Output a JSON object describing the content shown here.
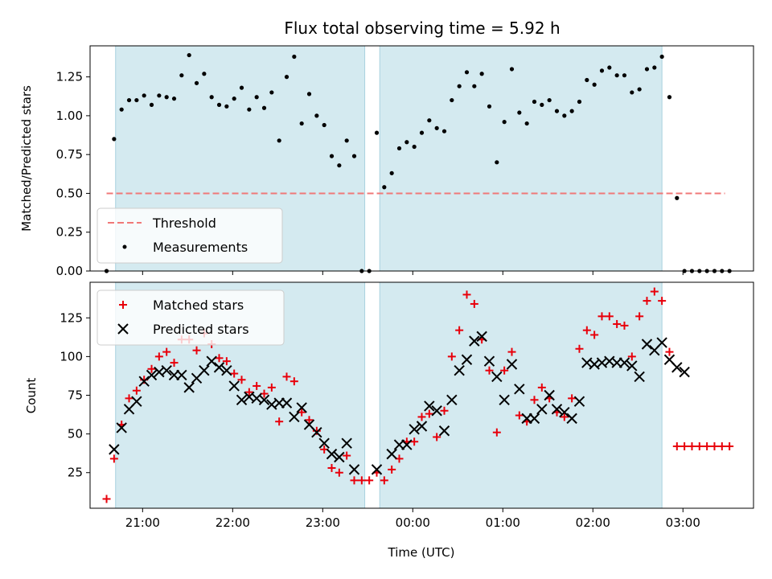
{
  "title": "Flux total observing time = 5.92 h",
  "colors": {
    "shade": "#d4eaf0",
    "shade_edge": "#a9d2df",
    "threshold": "#f07878",
    "measure": "#000000",
    "matched": "#e8000b",
    "predicted": "#000000"
  },
  "chart_data": [
    {
      "type": "scatter",
      "ylabel": "Matched/Predicted stars",
      "ylim": [
        0,
        1.45
      ],
      "yticks": [
        0,
        0.25,
        0.5,
        0.75,
        1.0,
        1.25
      ],
      "ytick_labels": [
        "0.00",
        "0.25",
        "0.50",
        "0.75",
        "1.00",
        "1.25"
      ],
      "xlim": [
        "20:25",
        "03:47"
      ],
      "shaded_intervals": [
        [
          "20:42",
          "23:28"
        ],
        [
          "23:38",
          "02:46"
        ]
      ],
      "legend": {
        "placement": "lower-left",
        "entries": [
          "Threshold",
          "Measurements"
        ]
      },
      "threshold": {
        "name": "Threshold",
        "y": 0.5,
        "x_range": [
          "20:36",
          "03:28"
        ],
        "style": "dashed"
      },
      "series": [
        {
          "name": "Measurements",
          "marker": "dot",
          "points": [
            [
              "20:36",
              0.0
            ],
            [
              "20:41",
              0.85
            ],
            [
              "20:46",
              1.04
            ],
            [
              "20:51",
              1.1
            ],
            [
              "20:56",
              1.1
            ],
            [
              "21:01",
              1.13
            ],
            [
              "21:06",
              1.07
            ],
            [
              "21:11",
              1.13
            ],
            [
              "21:16",
              1.12
            ],
            [
              "21:21",
              1.11
            ],
            [
              "21:26",
              1.26
            ],
            [
              "21:31",
              1.39
            ],
            [
              "21:36",
              1.21
            ],
            [
              "21:41",
              1.27
            ],
            [
              "21:46",
              1.12
            ],
            [
              "21:51",
              1.07
            ],
            [
              "21:56",
              1.06
            ],
            [
              "22:01",
              1.11
            ],
            [
              "22:06",
              1.18
            ],
            [
              "22:11",
              1.04
            ],
            [
              "22:16",
              1.12
            ],
            [
              "22:21",
              1.05
            ],
            [
              "22:26",
              1.15
            ],
            [
              "22:31",
              0.84
            ],
            [
              "22:36",
              1.25
            ],
            [
              "22:41",
              1.38
            ],
            [
              "22:46",
              0.95
            ],
            [
              "22:51",
              1.14
            ],
            [
              "22:56",
              1.0
            ],
            [
              "23:01",
              0.94
            ],
            [
              "23:06",
              0.74
            ],
            [
              "23:11",
              0.68
            ],
            [
              "23:16",
              0.84
            ],
            [
              "23:21",
              0.74
            ],
            [
              "23:26",
              0.0
            ],
            [
              "23:31",
              0.0
            ],
            [
              "23:36",
              0.89
            ],
            [
              "23:41",
              0.54
            ],
            [
              "23:46",
              0.63
            ],
            [
              "23:51",
              0.79
            ],
            [
              "23:56",
              0.83
            ],
            [
              "00:01",
              0.8
            ],
            [
              "00:06",
              0.89
            ],
            [
              "00:11",
              0.97
            ],
            [
              "00:16",
              0.92
            ],
            [
              "00:21",
              0.9
            ],
            [
              "00:26",
              1.1
            ],
            [
              "00:31",
              1.19
            ],
            [
              "00:36",
              1.28
            ],
            [
              "00:41",
              1.19
            ],
            [
              "00:46",
              1.27
            ],
            [
              "00:51",
              1.06
            ],
            [
              "00:56",
              0.7
            ],
            [
              "01:01",
              0.96
            ],
            [
              "01:06",
              1.3
            ],
            [
              "01:11",
              1.02
            ],
            [
              "01:16",
              0.95
            ],
            [
              "01:21",
              1.09
            ],
            [
              "01:26",
              1.07
            ],
            [
              "01:31",
              1.1
            ],
            [
              "01:36",
              1.03
            ],
            [
              "01:41",
              1.0
            ],
            [
              "01:46",
              1.03
            ],
            [
              "01:51",
              1.09
            ],
            [
              "01:56",
              1.23
            ],
            [
              "02:01",
              1.2
            ],
            [
              "02:06",
              1.29
            ],
            [
              "02:11",
              1.31
            ],
            [
              "02:16",
              1.26
            ],
            [
              "02:21",
              1.26
            ],
            [
              "02:26",
              1.15
            ],
            [
              "02:31",
              1.17
            ],
            [
              "02:36",
              1.3
            ],
            [
              "02:41",
              1.31
            ],
            [
              "02:46",
              1.38
            ],
            [
              "02:51",
              1.12
            ],
            [
              "02:56",
              0.47
            ],
            [
              "03:01",
              0.0
            ],
            [
              "03:06",
              0.0
            ],
            [
              "03:11",
              0.0
            ],
            [
              "03:16",
              0.0
            ],
            [
              "03:21",
              0.0
            ],
            [
              "03:26",
              0.0
            ],
            [
              "03:31",
              0.0
            ]
          ]
        }
      ]
    },
    {
      "type": "scatter",
      "xlabel": "Time (UTC)",
      "ylabel": "Count",
      "ylim": [
        2,
        148
      ],
      "yticks": [
        25,
        50,
        75,
        100,
        125
      ],
      "ytick_labels": [
        "25",
        "50",
        "75",
        "100",
        "125"
      ],
      "xlim": [
        "20:25",
        "03:47"
      ],
      "xticks": [
        "21:00",
        "22:00",
        "23:00",
        "00:00",
        "01:00",
        "02:00",
        "03:00"
      ],
      "xtick_labels": [
        "21:00",
        "22:00",
        "23:00",
        "00:00",
        "01:00",
        "02:00",
        "03:00"
      ],
      "shaded_intervals": [
        [
          "20:42",
          "23:28"
        ],
        [
          "23:38",
          "02:46"
        ]
      ],
      "legend": {
        "placement": "upper-left",
        "entries": [
          "Matched stars",
          "Predicted stars"
        ]
      },
      "series": [
        {
          "name": "Matched stars",
          "marker": "plus",
          "points": [
            [
              "20:36",
              8
            ],
            [
              "20:41",
              34
            ],
            [
              "20:46",
              56
            ],
            [
              "20:51",
              73
            ],
            [
              "20:56",
              78
            ],
            [
              "21:01",
              85
            ],
            [
              "21:06",
              92
            ],
            [
              "21:11",
              100
            ],
            [
              "21:16",
              103
            ],
            [
              "21:21",
              96
            ],
            [
              "21:26",
              111
            ],
            [
              "21:31",
              111
            ],
            [
              "21:36",
              104
            ],
            [
              "21:41",
              115
            ],
            [
              "21:46",
              108
            ],
            [
              "21:51",
              99
            ],
            [
              "21:56",
              97
            ],
            [
              "22:01",
              89
            ],
            [
              "22:06",
              85
            ],
            [
              "22:11",
              77
            ],
            [
              "22:16",
              81
            ],
            [
              "22:21",
              76
            ],
            [
              "22:26",
              80
            ],
            [
              "22:31",
              58
            ],
            [
              "22:36",
              87
            ],
            [
              "22:41",
              84
            ],
            [
              "22:46",
              64
            ],
            [
              "22:51",
              59
            ],
            [
              "22:56",
              52
            ],
            [
              "23:01",
              40
            ],
            [
              "23:06",
              28
            ],
            [
              "23:11",
              25
            ],
            [
              "23:16",
              36
            ],
            [
              "23:21",
              20
            ],
            [
              "23:26",
              20
            ],
            [
              "23:31",
              20
            ],
            [
              "23:36",
              25
            ],
            [
              "23:41",
              20
            ],
            [
              "23:46",
              27
            ],
            [
              "23:51",
              34
            ],
            [
              "23:56",
              45
            ],
            [
              "00:01",
              45
            ],
            [
              "00:06",
              61
            ],
            [
              "00:11",
              63
            ],
            [
              "00:16",
              48
            ],
            [
              "00:21",
              65
            ],
            [
              "00:26",
              100
            ],
            [
              "00:31",
              117
            ],
            [
              "00:36",
              140
            ],
            [
              "00:41",
              134
            ],
            [
              "00:46",
              111
            ],
            [
              "00:51",
              91
            ],
            [
              "00:56",
              51
            ],
            [
              "01:01",
              91
            ],
            [
              "01:06",
              103
            ],
            [
              "01:11",
              62
            ],
            [
              "01:16",
              58
            ],
            [
              "01:21",
              72
            ],
            [
              "01:26",
              80
            ],
            [
              "01:31",
              73
            ],
            [
              "01:36",
              64
            ],
            [
              "01:41",
              61
            ],
            [
              "01:46",
              73
            ],
            [
              "01:51",
              105
            ],
            [
              "01:56",
              117
            ],
            [
              "02:01",
              114
            ],
            [
              "02:06",
              126
            ],
            [
              "02:11",
              126
            ],
            [
              "02:16",
              121
            ],
            [
              "02:21",
              120
            ],
            [
              "02:26",
              100
            ],
            [
              "02:31",
              126
            ],
            [
              "02:36",
              136
            ],
            [
              "02:41",
              142
            ],
            [
              "02:46",
              136
            ],
            [
              "02:51",
              103
            ],
            [
              "02:56",
              42
            ],
            [
              "03:01",
              42
            ],
            [
              "03:06",
              42
            ],
            [
              "03:11",
              42
            ],
            [
              "03:16",
              42
            ],
            [
              "03:21",
              42
            ],
            [
              "03:26",
              42
            ],
            [
              "03:31",
              42
            ]
          ]
        },
        {
          "name": "Predicted stars",
          "marker": "x",
          "points": [
            [
              "20:41",
              40
            ],
            [
              "20:46",
              54
            ],
            [
              "20:51",
              66
            ],
            [
              "20:56",
              71
            ],
            [
              "21:01",
              84
            ],
            [
              "21:06",
              88
            ],
            [
              "21:11",
              90
            ],
            [
              "21:16",
              91
            ],
            [
              "21:21",
              88
            ],
            [
              "21:26",
              88
            ],
            [
              "21:31",
              80
            ],
            [
              "21:36",
              86
            ],
            [
              "21:41",
              91
            ],
            [
              "21:46",
              97
            ],
            [
              "21:51",
              93
            ],
            [
              "21:56",
              91
            ],
            [
              "22:01",
              81
            ],
            [
              "22:06",
              72
            ],
            [
              "22:11",
              74
            ],
            [
              "22:16",
              73
            ],
            [
              "22:21",
              72
            ],
            [
              "22:26",
              69
            ],
            [
              "22:31",
              70
            ],
            [
              "22:36",
              70
            ],
            [
              "22:41",
              61
            ],
            [
              "22:46",
              67
            ],
            [
              "22:51",
              56
            ],
            [
              "22:56",
              51
            ],
            [
              "23:01",
              44
            ],
            [
              "23:06",
              37
            ],
            [
              "23:11",
              35
            ],
            [
              "23:16",
              44
            ],
            [
              "23:21",
              27
            ],
            [
              "23:36",
              27
            ],
            [
              "23:46",
              37
            ],
            [
              "23:51",
              43
            ],
            [
              "23:56",
              43
            ],
            [
              "00:01",
              53
            ],
            [
              "00:06",
              55
            ],
            [
              "00:11",
              68
            ],
            [
              "00:16",
              65
            ],
            [
              "00:21",
              52
            ],
            [
              "00:26",
              72
            ],
            [
              "00:31",
              91
            ],
            [
              "00:36",
              98
            ],
            [
              "00:41",
              110
            ],
            [
              "00:46",
              113
            ],
            [
              "00:51",
              97
            ],
            [
              "00:56",
              87
            ],
            [
              "01:01",
              72
            ],
            [
              "01:06",
              95
            ],
            [
              "01:11",
              79
            ],
            [
              "01:16",
              60
            ],
            [
              "01:21",
              60
            ],
            [
              "01:26",
              66
            ],
            [
              "01:31",
              75
            ],
            [
              "01:36",
              66
            ],
            [
              "01:41",
              64
            ],
            [
              "01:46",
              60
            ],
            [
              "01:51",
              71
            ],
            [
              "01:56",
              96
            ],
            [
              "02:01",
              95
            ],
            [
              "02:06",
              96
            ],
            [
              "02:11",
              97
            ],
            [
              "02:16",
              96
            ],
            [
              "02:21",
              96
            ],
            [
              "02:26",
              94
            ],
            [
              "02:31",
              87
            ],
            [
              "02:36",
              108
            ],
            [
              "02:41",
              104
            ],
            [
              "02:46",
              109
            ],
            [
              "02:51",
              98
            ],
            [
              "02:56",
              93
            ],
            [
              "03:01",
              90
            ]
          ]
        }
      ]
    }
  ]
}
